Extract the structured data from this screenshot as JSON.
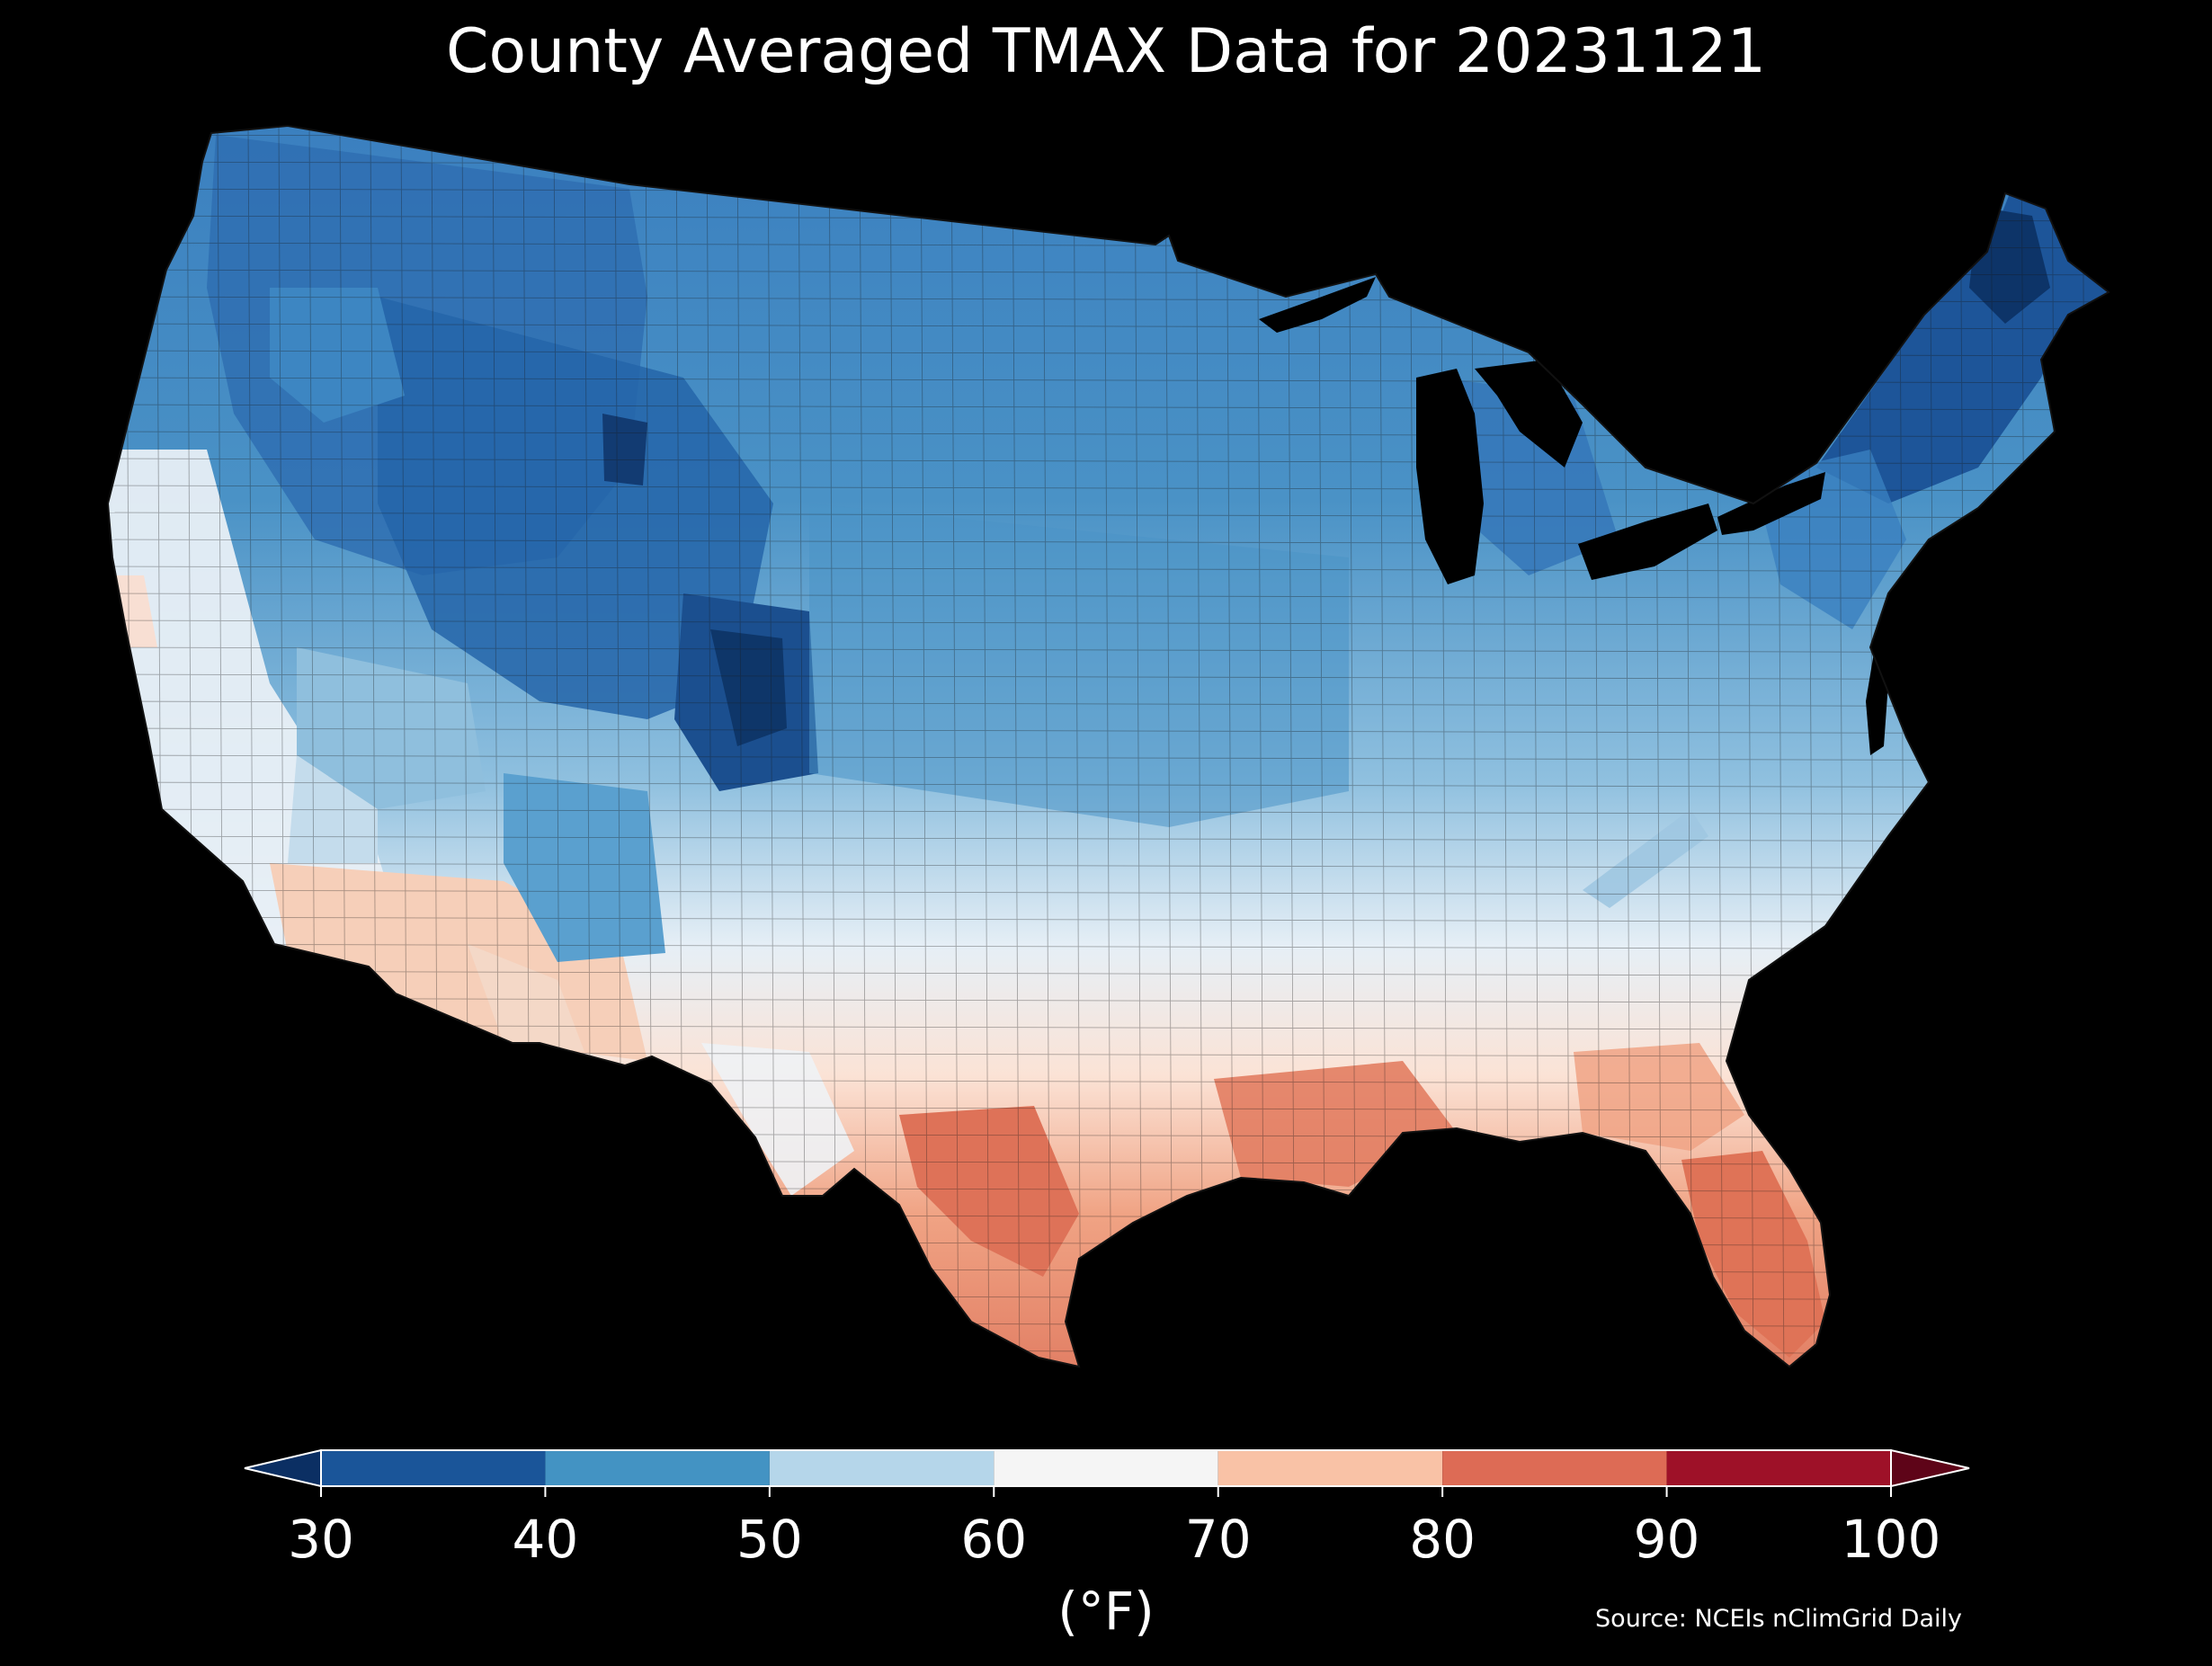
{
  "title": "County Averaged TMAX Data for 20231121",
  "colorbar": {
    "unit_label": "(°F)",
    "ticks": [
      "30",
      "40",
      "50",
      "60",
      "70",
      "80",
      "90",
      "100"
    ],
    "bins": [
      {
        "range": [
          30,
          40
        ],
        "color": "#1a5599"
      },
      {
        "range": [
          40,
          50
        ],
        "color": "#4393c3"
      },
      {
        "range": [
          50,
          60
        ],
        "color": "#b5d6ea"
      },
      {
        "range": [
          60,
          70
        ],
        "color": "#f5f5f5"
      },
      {
        "range": [
          70,
          80
        ],
        "color": "#f9c2a6"
      },
      {
        "range": [
          80,
          90
        ],
        "color": "#dd6b55"
      },
      {
        "range": [
          90,
          100
        ],
        "color": "#9e1128"
      }
    ],
    "extend_low_color": "#0b2f63",
    "extend_high_color": "#5e0418"
  },
  "source": "Source: NCEIs nClimGrid Daily",
  "map": {
    "region": "CONUS counties",
    "regions_summary": [
      {
        "area": "Northern Rockies / Wyoming",
        "approx_tmax_f": 38
      },
      {
        "area": "Colorado high terrain",
        "approx_tmax_f": 32
      },
      {
        "area": "Maine / Northern New England",
        "approx_tmax_f": 33
      },
      {
        "area": "Great Plains / Midwest",
        "approx_tmax_f": 48
      },
      {
        "area": "Mid-Atlantic / Ohio Valley",
        "approx_tmax_f": 57
      },
      {
        "area": "Southern Plains / Tennessee",
        "approx_tmax_f": 65
      },
      {
        "area": "Gulf Coast / South Texas",
        "approx_tmax_f": 82
      },
      {
        "area": "Florida",
        "approx_tmax_f": 83
      },
      {
        "area": "Southern California / Arizona",
        "approx_tmax_f": 72
      }
    ]
  }
}
